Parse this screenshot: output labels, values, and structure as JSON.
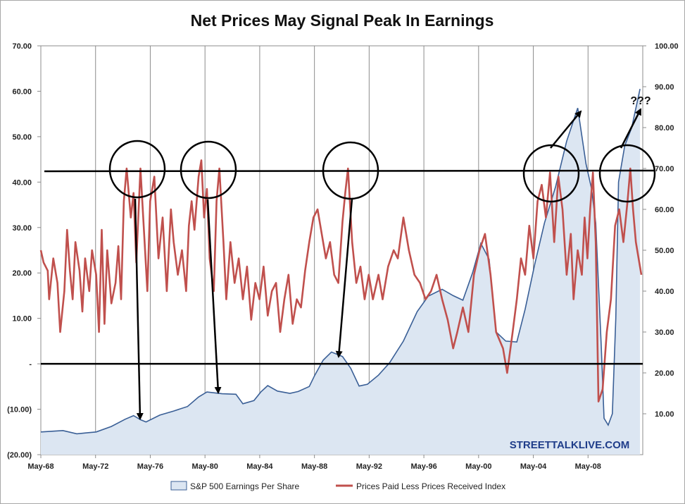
{
  "chart_data": {
    "type": "area",
    "title": "Net Prices May Signal Peak In Earnings",
    "watermark": "STREETTALKLIVE.COM",
    "annotation_text": "???",
    "x_tick_labels": [
      "May-68",
      "May-72",
      "May-76",
      "May-80",
      "May-84",
      "May-88",
      "May-92",
      "May-96",
      "May-00",
      "May-04",
      "May-08"
    ],
    "y_left": {
      "lim": [
        -20,
        70
      ],
      "tick_labels": [
        "70.00",
        "60.00",
        "50.00",
        "40.00",
        "30.00",
        "20.00",
        "10.00",
        "-",
        "(10.00)",
        "(20.00)"
      ]
    },
    "y_right": {
      "lim": [
        0,
        100
      ],
      "tick_labels": [
        "100.00",
        "90.00",
        "80.00",
        "70.00",
        "60.00",
        "50.00",
        "40.00",
        "30.00",
        "20.00",
        "10.00"
      ]
    },
    "grid": "vertical-only",
    "legend_position": "bottom",
    "colors": {
      "earnings_fill": "#dce6f2",
      "earnings_line": "#3a5f96",
      "index_line": "#c0504d",
      "annotation": "#000000"
    },
    "series": [
      {
        "name": "S&P 500 Earnings Per Share",
        "axis": "left",
        "style": "area",
        "points": [
          [
            1968.4,
            -15.0
          ],
          [
            1970.0,
            -14.7
          ],
          [
            1971.0,
            -15.4
          ],
          [
            1972.4,
            -15.0
          ],
          [
            1973.5,
            -13.8
          ],
          [
            1974.5,
            -12.2
          ],
          [
            1975.1,
            -11.4
          ],
          [
            1975.6,
            -12.3
          ],
          [
            1976.0,
            -12.8
          ],
          [
            1977.0,
            -11.3
          ],
          [
            1978.0,
            -10.4
          ],
          [
            1979.0,
            -9.4
          ],
          [
            1979.8,
            -7.3
          ],
          [
            1980.4,
            -6.2
          ],
          [
            1981.5,
            -6.6
          ],
          [
            1982.5,
            -6.7
          ],
          [
            1983.0,
            -8.8
          ],
          [
            1983.8,
            -8.1
          ],
          [
            1984.3,
            -6.2
          ],
          [
            1984.8,
            -4.8
          ],
          [
            1985.5,
            -6.0
          ],
          [
            1986.4,
            -6.5
          ],
          [
            1987.0,
            -6.1
          ],
          [
            1987.8,
            -5.0
          ],
          [
            1988.2,
            -2.5
          ],
          [
            1988.8,
            0.8
          ],
          [
            1989.4,
            2.6
          ],
          [
            1990.2,
            1.6
          ],
          [
            1990.8,
            -1.0
          ],
          [
            1991.4,
            -4.9
          ],
          [
            1992.0,
            -4.5
          ],
          [
            1992.8,
            -2.5
          ],
          [
            1993.6,
            0.2
          ],
          [
            1994.6,
            5.0
          ],
          [
            1995.6,
            11.5
          ],
          [
            1996.4,
            14.9
          ],
          [
            1997.4,
            16.4
          ],
          [
            1998.2,
            15.0
          ],
          [
            1998.9,
            14.0
          ],
          [
            1999.6,
            20.0
          ],
          [
            2000.2,
            26.5
          ],
          [
            2000.8,
            23.0
          ],
          [
            2001.3,
            7.0
          ],
          [
            2002.0,
            5.0
          ],
          [
            2002.8,
            4.8
          ],
          [
            2003.4,
            12.0
          ],
          [
            2004.1,
            22.0
          ],
          [
            2004.8,
            31.0
          ],
          [
            2005.6,
            39.0
          ],
          [
            2006.4,
            49.0
          ],
          [
            2007.2,
            56.3
          ],
          [
            2007.8,
            44.0
          ],
          [
            2008.2,
            38.5
          ],
          [
            2008.5,
            31.0
          ],
          [
            2008.9,
            4.0
          ],
          [
            2009.1,
            -12.0
          ],
          [
            2009.4,
            -13.5
          ],
          [
            2009.7,
            -11.0
          ],
          [
            2009.95,
            10.0
          ],
          [
            2010.15,
            40.0
          ],
          [
            2010.6,
            48.0
          ],
          [
            2011.1,
            52.0
          ],
          [
            2011.7,
            60.5
          ]
        ]
      },
      {
        "name": "Prices Paid Less Prices Received Index",
        "axis": "right",
        "style": "line",
        "points": [
          [
            1968.4,
            50
          ],
          [
            1968.6,
            47
          ],
          [
            1968.9,
            45
          ],
          [
            1969.0,
            38
          ],
          [
            1969.3,
            48
          ],
          [
            1969.6,
            42
          ],
          [
            1969.8,
            30
          ],
          [
            1970.1,
            40
          ],
          [
            1970.3,
            55
          ],
          [
            1970.5,
            45
          ],
          [
            1970.7,
            38
          ],
          [
            1970.9,
            52
          ],
          [
            1971.2,
            45
          ],
          [
            1971.4,
            35
          ],
          [
            1971.6,
            48
          ],
          [
            1971.9,
            40
          ],
          [
            1972.1,
            50
          ],
          [
            1972.4,
            44
          ],
          [
            1972.6,
            30
          ],
          [
            1972.8,
            55
          ],
          [
            1973.0,
            32
          ],
          [
            1973.2,
            50
          ],
          [
            1973.5,
            37
          ],
          [
            1973.8,
            42
          ],
          [
            1974.0,
            51
          ],
          [
            1974.2,
            38
          ],
          [
            1974.4,
            62
          ],
          [
            1974.6,
            70
          ],
          [
            1974.9,
            58
          ],
          [
            1975.1,
            64
          ],
          [
            1975.3,
            47
          ],
          [
            1975.6,
            70
          ],
          [
            1975.9,
            52
          ],
          [
            1976.1,
            40
          ],
          [
            1976.3,
            62
          ],
          [
            1976.6,
            68
          ],
          [
            1976.9,
            48
          ],
          [
            1977.2,
            58
          ],
          [
            1977.5,
            40
          ],
          [
            1977.8,
            60
          ],
          [
            1978.0,
            52
          ],
          [
            1978.3,
            44
          ],
          [
            1978.6,
            50
          ],
          [
            1978.9,
            40
          ],
          [
            1979.1,
            56
          ],
          [
            1979.3,
            62
          ],
          [
            1979.5,
            55
          ],
          [
            1979.8,
            68
          ],
          [
            1980.0,
            72
          ],
          [
            1980.2,
            58
          ],
          [
            1980.4,
            65
          ],
          [
            1980.6,
            48
          ],
          [
            1980.9,
            40
          ],
          [
            1981.1,
            62
          ],
          [
            1981.3,
            70
          ],
          [
            1981.6,
            52
          ],
          [
            1981.8,
            38
          ],
          [
            1982.1,
            52
          ],
          [
            1982.4,
            42
          ],
          [
            1982.7,
            48
          ],
          [
            1983.0,
            38
          ],
          [
            1983.3,
            46
          ],
          [
            1983.6,
            33
          ],
          [
            1983.9,
            42
          ],
          [
            1984.2,
            38
          ],
          [
            1984.5,
            46
          ],
          [
            1984.8,
            34
          ],
          [
            1985.1,
            40
          ],
          [
            1985.4,
            42
          ],
          [
            1985.7,
            30
          ],
          [
            1986.0,
            38
          ],
          [
            1986.3,
            44
          ],
          [
            1986.6,
            32
          ],
          [
            1986.9,
            38
          ],
          [
            1987.2,
            36
          ],
          [
            1987.5,
            45
          ],
          [
            1987.8,
            52
          ],
          [
            1988.1,
            58
          ],
          [
            1988.4,
            60
          ],
          [
            1988.7,
            54
          ],
          [
            1989.0,
            48
          ],
          [
            1989.3,
            52
          ],
          [
            1989.6,
            44
          ],
          [
            1989.9,
            42
          ],
          [
            1990.2,
            57
          ],
          [
            1990.4,
            64
          ],
          [
            1990.6,
            70
          ],
          [
            1990.9,
            52
          ],
          [
            1991.2,
            42
          ],
          [
            1991.5,
            46
          ],
          [
            1991.8,
            38
          ],
          [
            1992.1,
            44
          ],
          [
            1992.4,
            38
          ],
          [
            1992.8,
            44
          ],
          [
            1993.1,
            38
          ],
          [
            1993.5,
            46
          ],
          [
            1993.9,
            50
          ],
          [
            1994.2,
            48
          ],
          [
            1994.6,
            58
          ],
          [
            1995.0,
            50
          ],
          [
            1995.4,
            44
          ],
          [
            1995.8,
            42
          ],
          [
            1996.2,
            38
          ],
          [
            1996.6,
            40
          ],
          [
            1997.0,
            44
          ],
          [
            1997.4,
            38
          ],
          [
            1997.8,
            33
          ],
          [
            1998.2,
            26
          ],
          [
            1998.5,
            30
          ],
          [
            1998.9,
            36
          ],
          [
            1999.3,
            30
          ],
          [
            1999.7,
            44
          ],
          [
            2000.1,
            50
          ],
          [
            2000.5,
            54
          ],
          [
            2000.9,
            44
          ],
          [
            2001.3,
            30
          ],
          [
            2001.8,
            26
          ],
          [
            2002.1,
            20
          ],
          [
            2002.5,
            30
          ],
          [
            2002.8,
            38
          ],
          [
            2003.1,
            48
          ],
          [
            2003.4,
            44
          ],
          [
            2003.7,
            56
          ],
          [
            2004.0,
            48
          ],
          [
            2004.3,
            62
          ],
          [
            2004.6,
            66
          ],
          [
            2004.9,
            58
          ],
          [
            2005.2,
            69
          ],
          [
            2005.5,
            52
          ],
          [
            2005.8,
            68
          ],
          [
            2006.1,
            60
          ],
          [
            2006.4,
            44
          ],
          [
            2006.7,
            54
          ],
          [
            2006.9,
            38
          ],
          [
            2007.2,
            50
          ],
          [
            2007.5,
            44
          ],
          [
            2007.7,
            58
          ],
          [
            2007.9,
            48
          ],
          [
            2008.1,
            60
          ],
          [
            2008.3,
            69
          ],
          [
            2008.5,
            52
          ],
          [
            2008.7,
            13
          ],
          [
            2009.0,
            16
          ],
          [
            2009.3,
            30
          ],
          [
            2009.6,
            38
          ],
          [
            2009.9,
            56
          ],
          [
            2010.2,
            60
          ],
          [
            2010.5,
            52
          ],
          [
            2010.8,
            62
          ],
          [
            2011.0,
            70
          ],
          [
            2011.2,
            60
          ],
          [
            2011.4,
            52
          ],
          [
            2011.6,
            48
          ],
          [
            2011.8,
            44
          ]
        ]
      }
    ]
  }
}
